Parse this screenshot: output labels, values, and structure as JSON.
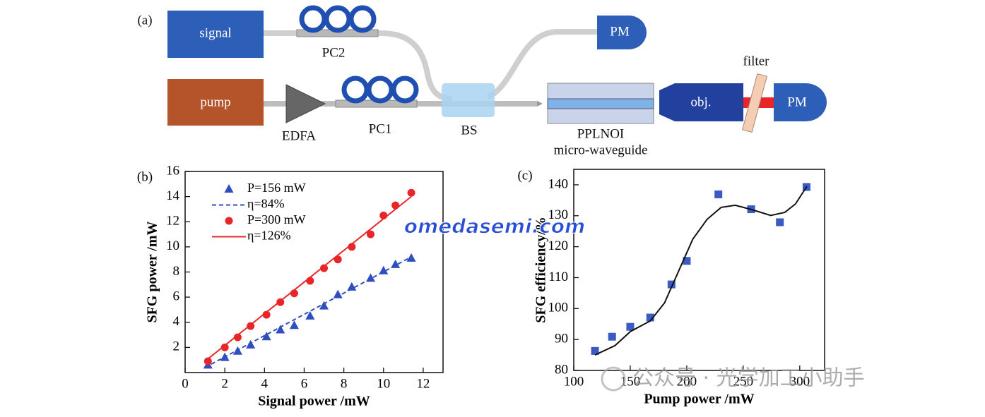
{
  "diagram": {
    "label": "(a)",
    "signal": "signal",
    "pump": "pump",
    "pc2": "PC2",
    "pc1": "PC1",
    "edfa": "EDFA",
    "bs": "BS",
    "waveguide": [
      "PPLNOI",
      "micro-waveguide"
    ],
    "pm_top": "PM",
    "pm_right": "PM",
    "objective": "obj.",
    "filter": "filter"
  },
  "watermarks": [
    "omedasemi.com",
    "公众号 · 光学加工小助手"
  ],
  "chart_data": [
    {
      "type": "scatter",
      "label": "(b)",
      "x_label": "Signal power /mW",
      "y_label": "SFG power /mW",
      "xlim": [
        0,
        13
      ],
      "xticks": [
        0,
        2,
        4,
        6,
        8,
        10,
        12
      ],
      "ylim": [
        0,
        16
      ],
      "yticks": [
        2,
        4,
        6,
        8,
        10,
        12,
        14,
        16
      ],
      "legend": "upper left",
      "series": [
        {
          "name": "P=156 mW",
          "color": "#2f4fbf",
          "marker": "triangle",
          "x": [
            1.15,
            2.0,
            2.65,
            3.3,
            4.1,
            4.8,
            5.5,
            6.3,
            7.0,
            7.7,
            8.4,
            9.35,
            10.0,
            10.6,
            11.4
          ],
          "values": [
            0.6,
            1.2,
            1.7,
            2.2,
            2.85,
            3.4,
            3.75,
            4.5,
            5.3,
            6.2,
            6.8,
            7.5,
            8.1,
            8.6,
            9.1
          ]
        },
        {
          "name": "η=84%",
          "color": "#2f4fbf",
          "line": "dashed",
          "x": [
            1.0,
            11.4
          ],
          "values": [
            0.4,
            9.2
          ]
        },
        {
          "name": "P=300 mW",
          "color": "#e8262a",
          "marker": "circle",
          "x": [
            1.15,
            2.0,
            2.65,
            3.3,
            4.1,
            4.8,
            5.5,
            6.3,
            7.0,
            7.7,
            8.4,
            9.35,
            10.0,
            10.6,
            11.4
          ],
          "values": [
            0.9,
            2.0,
            2.8,
            3.7,
            4.6,
            5.6,
            6.3,
            7.3,
            8.3,
            9.0,
            10.0,
            11.0,
            12.5,
            13.3,
            14.3
          ]
        },
        {
          "name": "η=126%",
          "color": "#e8262a",
          "line": "solid",
          "x": [
            1.0,
            11.4
          ],
          "values": [
            0.9,
            14.0
          ]
        }
      ]
    },
    {
      "type": "scatter",
      "label": "(c)",
      "x_label": "Pump power /mW",
      "y_label": "SFG efficiency/%",
      "xlim": [
        100,
        322
      ],
      "xticks": [
        100,
        150,
        200,
        250,
        300
      ],
      "ylim": [
        80,
        145
      ],
      "yticks": [
        80,
        90,
        100,
        110,
        120,
        130,
        140
      ],
      "series": [
        {
          "color": "#3a5bc4",
          "marker": "square",
          "x": [
            118.8,
            133.9,
            150,
            167.7,
            186.5,
            200,
            228,
            257,
            282.4,
            306
          ],
          "values": [
            86.3,
            90.9,
            94.1,
            97.1,
            107.8,
            115.4,
            136.9,
            132.1,
            127.9,
            139.3
          ]
        },
        {
          "color": "#111111",
          "line": "solid",
          "x": [
            118.8,
            136.4,
            150.2,
            167.7,
            180.3,
            192.8,
            205.3,
            217.9,
            230.4,
            242.9,
            257.4,
            274.3,
            286.8,
            296.2,
            306.3
          ],
          "values": [
            85.0,
            88.0,
            92.6,
            96.0,
            101.8,
            112.1,
            122.4,
            128.8,
            132.7,
            133.4,
            132.0,
            130.1,
            131.1,
            133.8,
            139.5
          ]
        }
      ]
    }
  ]
}
